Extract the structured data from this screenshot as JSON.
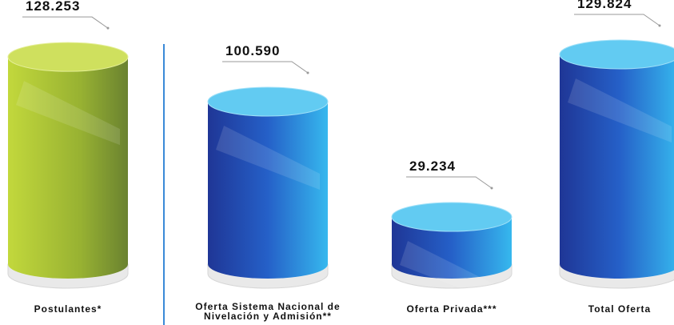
{
  "chart_data": {
    "type": "bar",
    "categories": [
      "Postulantes*",
      "Oferta Sistema Nacional de Nivelación y Admisión**",
      "Oferta Privada***",
      "Total Oferta"
    ],
    "values": [
      128253,
      100590,
      29234,
      129824
    ],
    "value_labels": [
      "128.253",
      "100.590",
      "29.234",
      "129.824"
    ],
    "colors": [
      "#9bb835",
      "#2a6fd0",
      "#2a6fd0",
      "#2a6fd0"
    ]
  }
}
